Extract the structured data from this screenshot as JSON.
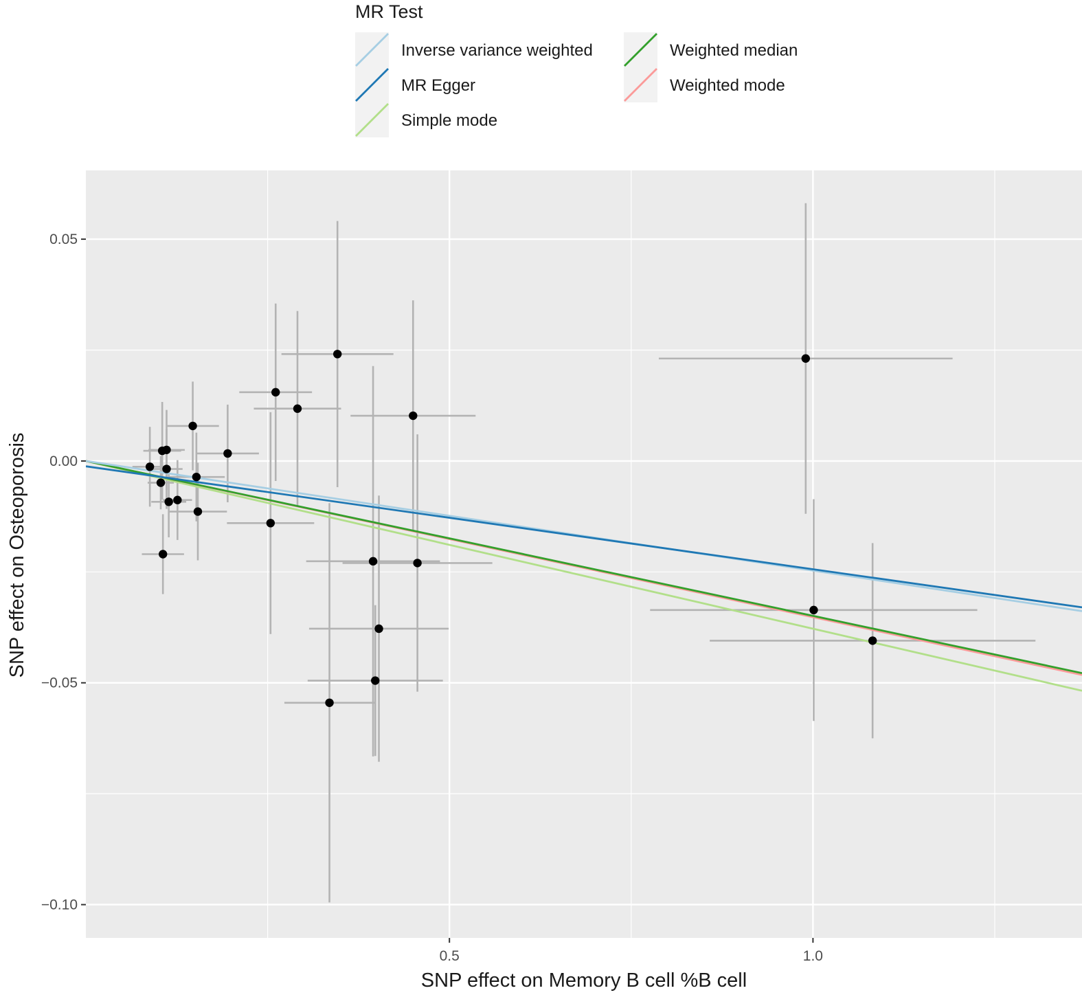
{
  "chart_data": {
    "type": "scatter",
    "xlabel": "SNP effect on Memory B cell %B cell",
    "ylabel": "SNP effect on Osteoporosis",
    "xlim": [
      0.0,
      1.37
    ],
    "ylim": [
      -0.1075,
      0.0655
    ],
    "x_ticks": [
      0.5,
      1.0
    ],
    "x_tick_labels": [
      "0.5",
      "1.0"
    ],
    "x_minor_ticks": [
      0.25,
      0.75,
      1.25
    ],
    "y_ticks": [
      0.05,
      0.0,
      -0.05,
      -0.1
    ],
    "y_tick_labels": [
      "0.05",
      "0.00",
      "−0.05",
      "−0.10"
    ],
    "y_minor_ticks": [
      0.025,
      -0.025,
      -0.075
    ],
    "grid": true,
    "legend": {
      "title": "MR Test",
      "position": "top",
      "entries": [
        {
          "label": "Inverse variance weighted",
          "color": "#a6cee3"
        },
        {
          "label": "MR Egger",
          "color": "#1f78b4"
        },
        {
          "label": "Simple mode",
          "color": "#b2df8a"
        },
        {
          "label": "Weighted median",
          "color": "#33a02c"
        },
        {
          "label": "Weighted mode",
          "color": "#fb9a99"
        }
      ]
    },
    "lines": [
      {
        "name": "Inverse variance weighted",
        "intercept": 0.0,
        "slope": -0.0247,
        "color": "#a6cee3"
      },
      {
        "name": "MR Egger",
        "intercept": -0.0012,
        "slope": -0.0232,
        "color": "#1f78b4"
      },
      {
        "name": "Simple mode",
        "intercept": 0.0,
        "slope": -0.0378,
        "color": "#b2df8a"
      },
      {
        "name": "Weighted median",
        "intercept": 0.0,
        "slope": -0.0349,
        "color": "#33a02c"
      },
      {
        "name": "Weighted mode",
        "intercept": 0.0,
        "slope": -0.0352,
        "color": "#fb9a99"
      }
    ],
    "points": [
      {
        "x": 0.088,
        "y": -0.0013,
        "xerr": 0.024,
        "yerr": 0.009
      },
      {
        "x": 0.103,
        "y": -0.0049,
        "xerr": 0.018,
        "yerr": 0.006
      },
      {
        "x": 0.105,
        "y": 0.0023,
        "xerr": 0.026,
        "yerr": 0.011
      },
      {
        "x": 0.106,
        "y": -0.021,
        "xerr": 0.029,
        "yerr": 0.009
      },
      {
        "x": 0.111,
        "y": 0.0025,
        "xerr": 0.025,
        "yerr": 0.009
      },
      {
        "x": 0.111,
        "y": -0.0018,
        "xerr": 0.022,
        "yerr": 0.009
      },
      {
        "x": 0.114,
        "y": -0.0092,
        "xerr": 0.024,
        "yerr": 0.008
      },
      {
        "x": 0.126,
        "y": -0.0088,
        "xerr": 0.02,
        "yerr": 0.009
      },
      {
        "x": 0.147,
        "y": 0.0079,
        "xerr": 0.036,
        "yerr": 0.01
      },
      {
        "x": 0.152,
        "y": -0.0036,
        "xerr": 0.039,
        "yerr": 0.01
      },
      {
        "x": 0.154,
        "y": -0.0114,
        "xerr": 0.04,
        "yerr": 0.011
      },
      {
        "x": 0.195,
        "y": 0.0017,
        "xerr": 0.043,
        "yerr": 0.011
      },
      {
        "x": 0.254,
        "y": -0.014,
        "xerr": 0.06,
        "yerr": 0.025
      },
      {
        "x": 0.261,
        "y": 0.0155,
        "xerr": 0.05,
        "yerr": 0.02
      },
      {
        "x": 0.291,
        "y": 0.0118,
        "xerr": 0.06,
        "yerr": 0.022
      },
      {
        "x": 0.335,
        "y": -0.0545,
        "xerr": 0.062,
        "yerr": 0.045
      },
      {
        "x": 0.346,
        "y": 0.0241,
        "xerr": 0.077,
        "yerr": 0.03
      },
      {
        "x": 0.395,
        "y": -0.0226,
        "xerr": 0.092,
        "yerr": 0.044
      },
      {
        "x": 0.398,
        "y": -0.0495,
        "xerr": 0.093,
        "yerr": 0.017
      },
      {
        "x": 0.403,
        "y": -0.0378,
        "xerr": 0.096,
        "yerr": 0.03
      },
      {
        "x": 0.45,
        "y": 0.0102,
        "xerr": 0.086,
        "yerr": 0.026
      },
      {
        "x": 0.456,
        "y": -0.023,
        "xerr": 0.103,
        "yerr": 0.029
      },
      {
        "x": 0.99,
        "y": 0.0231,
        "xerr": 0.202,
        "yerr": 0.035
      },
      {
        "x": 1.001,
        "y": -0.0336,
        "xerr": 0.225,
        "yerr": 0.025
      },
      {
        "x": 1.082,
        "y": -0.0405,
        "xerr": 0.224,
        "yerr": 0.022
      }
    ]
  }
}
